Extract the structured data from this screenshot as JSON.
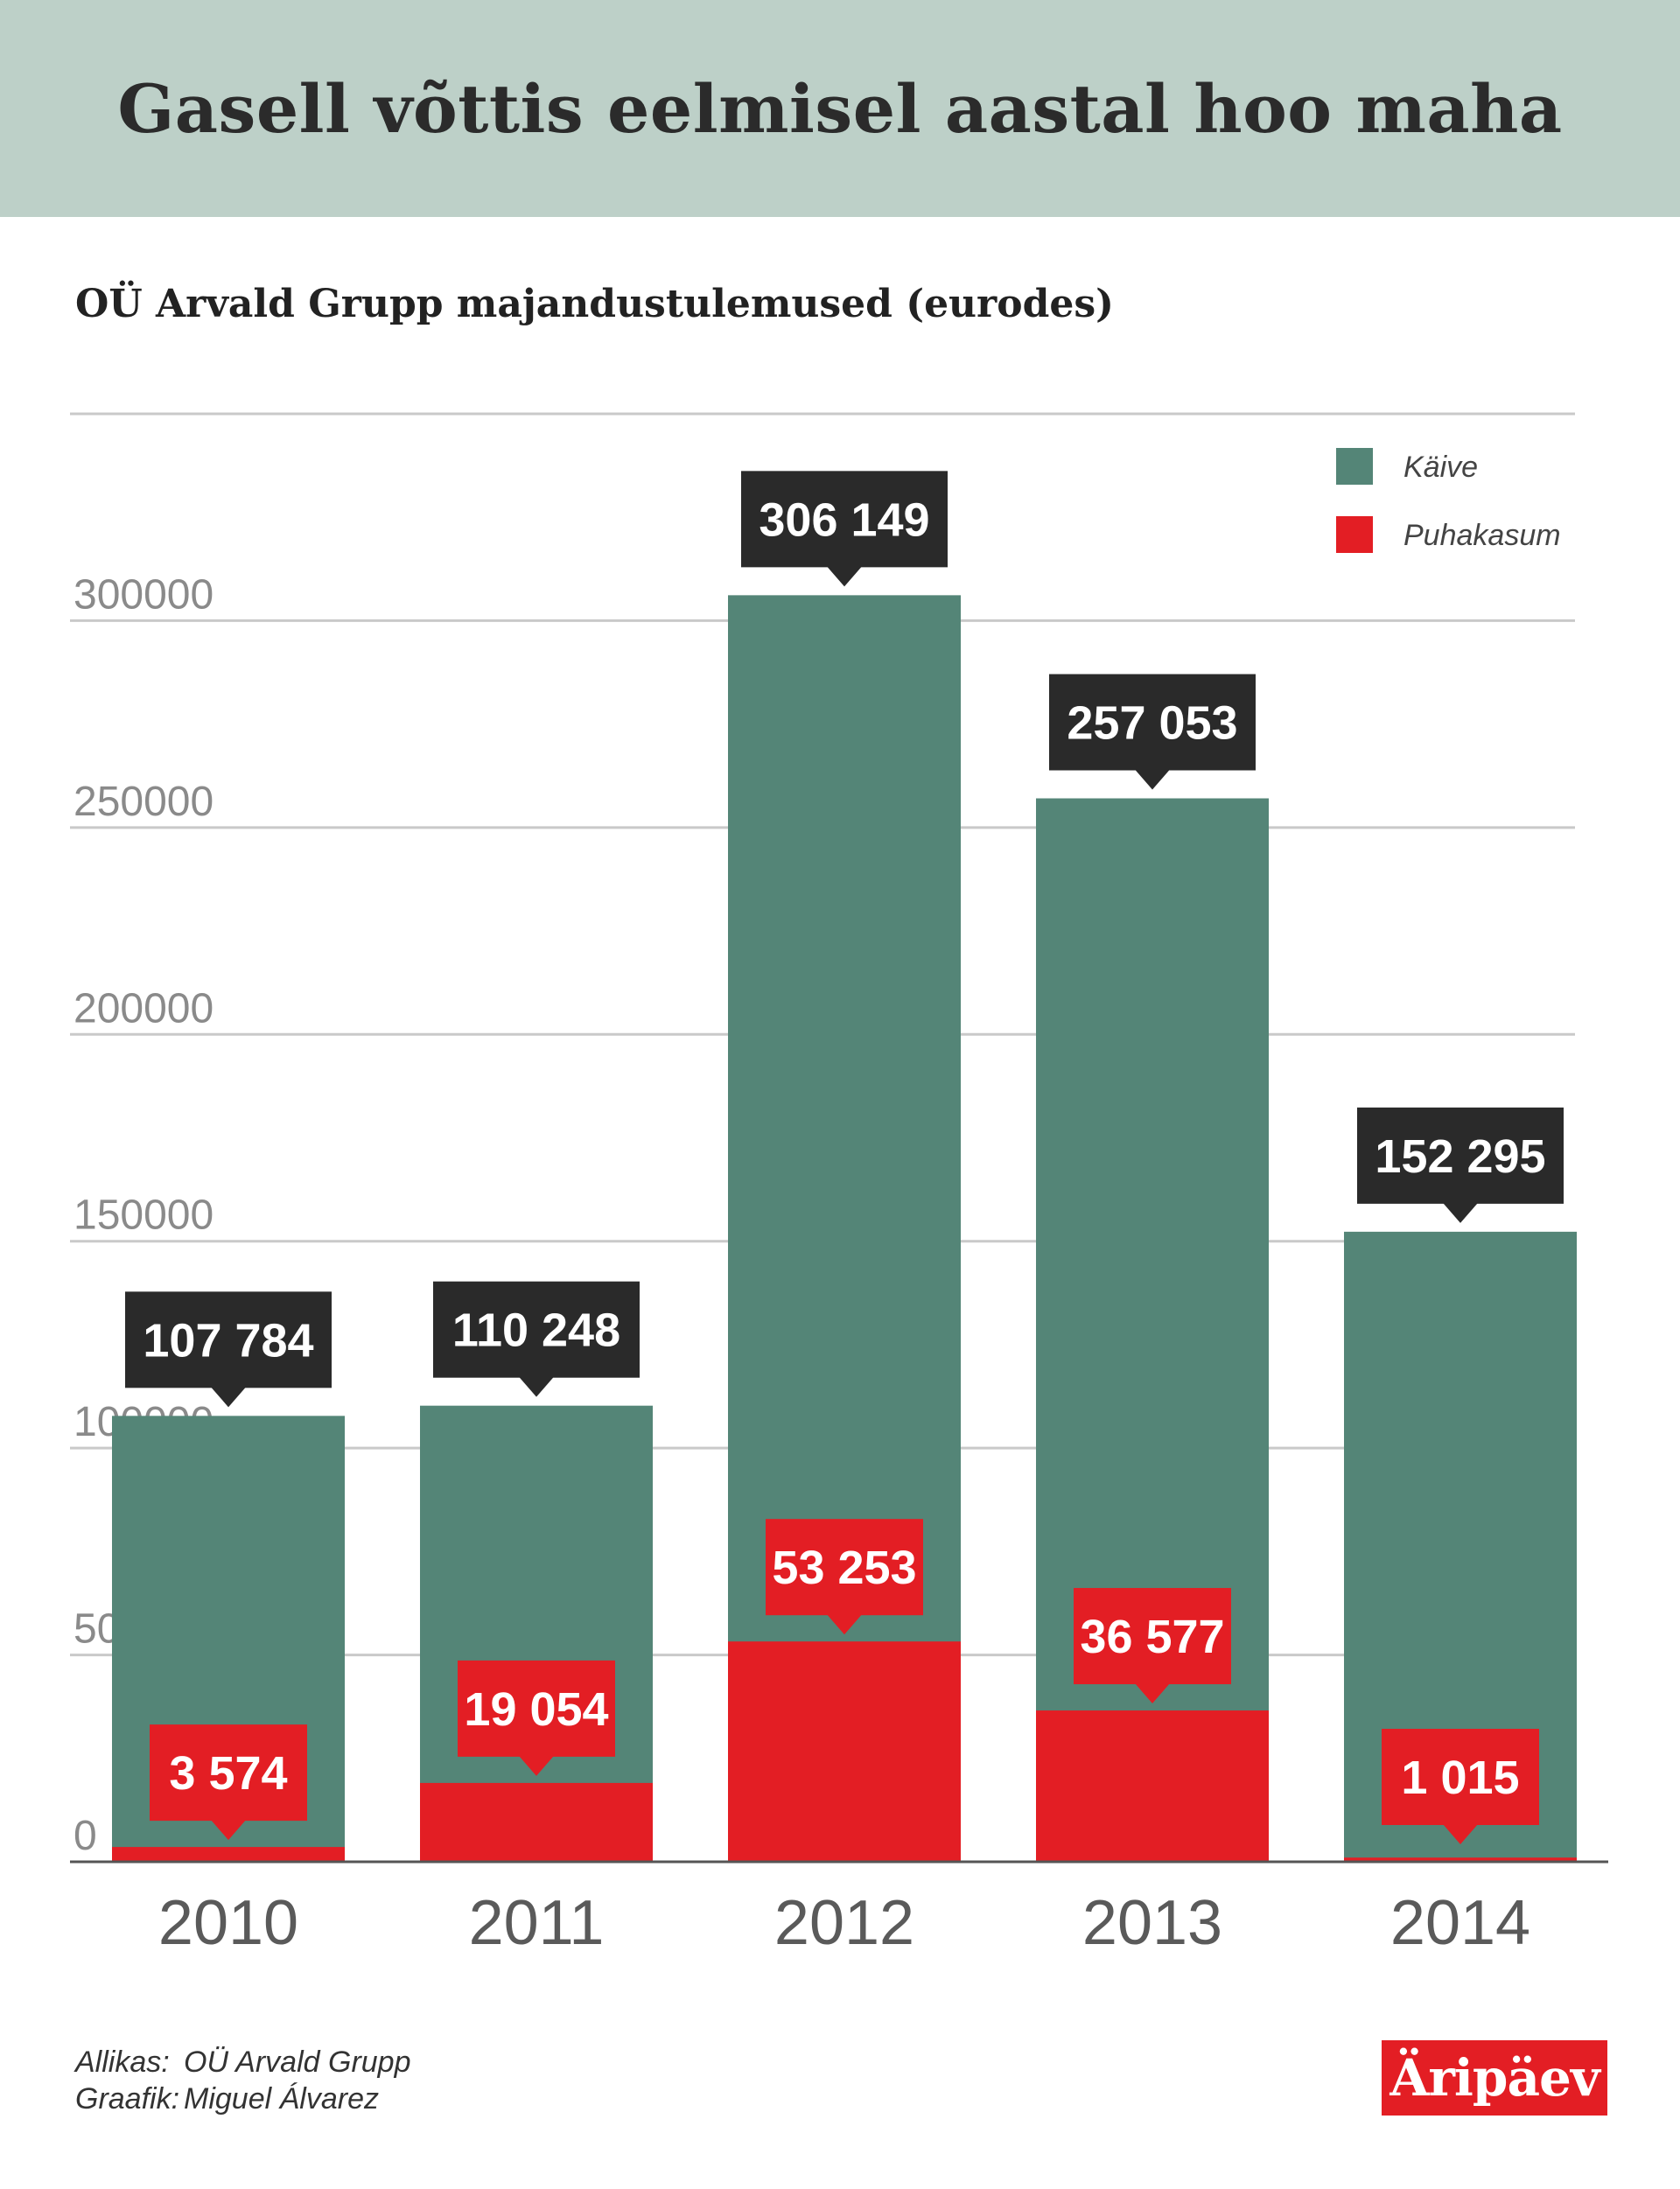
{
  "title": "Gasell võttis eelmisel aastal hoo maha",
  "subtitle": "OÜ Arvald Grupp majandustulemused (eurodes)",
  "colors": {
    "turnover": "#548577",
    "profit": "#e31e24",
    "callout_dark": "#2a2a2a",
    "banner": "#bdd0c8"
  },
  "chart_data": {
    "type": "bar",
    "categories": [
      "2010",
      "2011",
      "2012",
      "2013",
      "2014"
    ],
    "series": [
      {
        "name": "Käive",
        "values": [
          107784,
          110248,
          306149,
          257053,
          152295
        ],
        "labels": [
          "107 784",
          "110 248",
          "306 149",
          "257 053",
          "152 295"
        ]
      },
      {
        "name": "Puhakasum",
        "values": [
          3574,
          19054,
          53253,
          36577,
          1015
        ],
        "labels": [
          "3 574",
          "19 054",
          "53 253",
          "36 577",
          "1 015"
        ]
      }
    ],
    "ylim": [
      0,
      350000
    ],
    "yticks": [
      0,
      50000,
      100000,
      150000,
      200000,
      250000,
      300000
    ],
    "ytick_labels": [
      "0",
      "50000",
      "100000",
      "150000",
      "200000",
      "250000",
      "300000"
    ],
    "grid": true,
    "legend": "top-right"
  },
  "footer": {
    "source_label": "Allikas:",
    "source_value": "OÜ Arvald Grupp",
    "graphic_label": "Graafik:",
    "graphic_value": "Miguel Álvarez"
  },
  "logo_text": "Äripäev"
}
